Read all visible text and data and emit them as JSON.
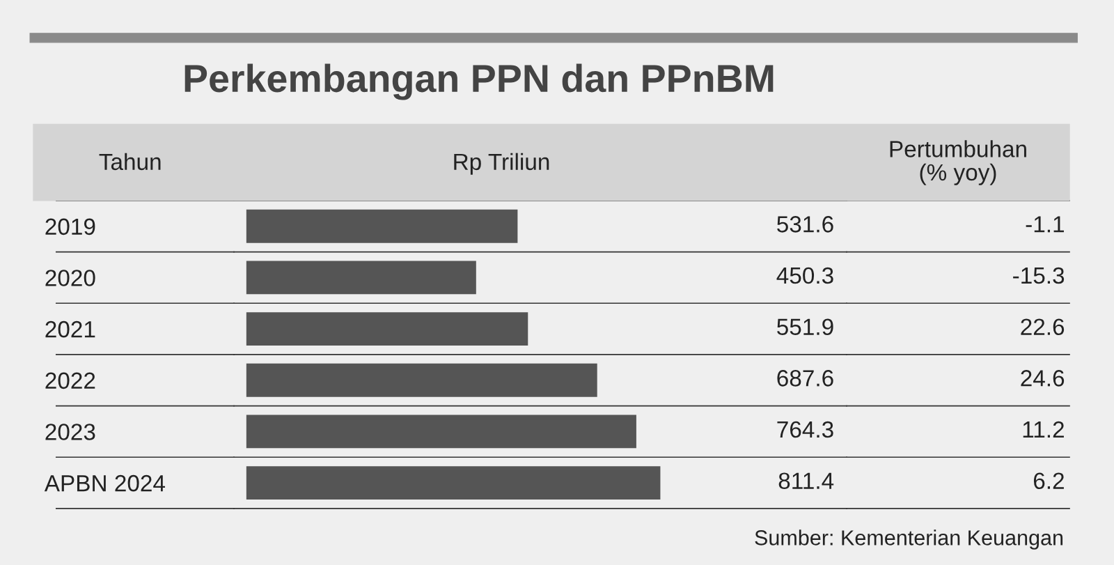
{
  "chart_data": [
    {
      "type": "bar",
      "orientation": "horizontal",
      "title": "Perkembangan PPN dan PPnBM",
      "subtitle": "Rp Triliun",
      "ylabel": "Tahun",
      "categories": [
        "2019",
        "2020",
        "2021",
        "2022",
        "2023",
        "APBN 2024"
      ],
      "values": [
        531.6,
        450.3,
        551.9,
        687.6,
        764.3,
        811.4
      ],
      "color": "#555555",
      "data_labels": true,
      "annotations": [
        "Sumber: Kementerian Keuangan"
      ]
    },
    {
      "type": "other",
      "title": "Pertumbuhan\n(% yoy)",
      "values": [
        -1.1,
        -15.3,
        22.6,
        24.6,
        11.2,
        6.2
      ],
      "data_labels": true
    }
  ]
}
